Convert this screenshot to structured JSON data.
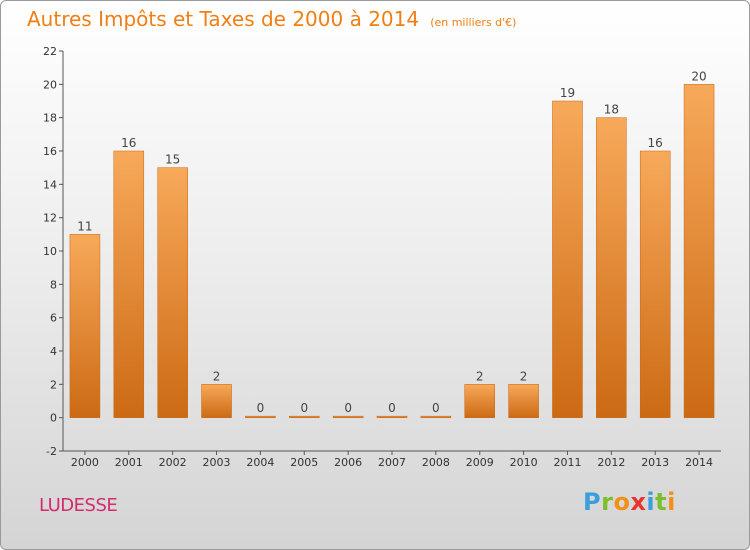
{
  "header": {
    "title": "Autres Impôts et Taxes de 2000 à 2014",
    "unit": "(en milliers d'€)"
  },
  "footer": {
    "commune": "LUDESSE",
    "logo_letters": [
      "P",
      "r",
      "o",
      "x",
      "i",
      "t",
      "i"
    ]
  },
  "colors": {
    "title": "#f07f14",
    "commune": "#d42a6e",
    "bar_light": "#f7a95a",
    "bar_dark": "#cc6a14",
    "axis": "#555555"
  },
  "chart_data": {
    "type": "bar",
    "title": "Autres Impôts et Taxes de 2000 à 2014",
    "subtitle": "(en milliers d'€)",
    "categories": [
      "2000",
      "2001",
      "2002",
      "2003",
      "2004",
      "2005",
      "2006",
      "2007",
      "2008",
      "2009",
      "2010",
      "2011",
      "2012",
      "2013",
      "2014"
    ],
    "values": [
      11,
      16,
      15,
      2,
      0,
      0,
      0,
      0,
      0,
      2,
      2,
      19,
      18,
      16,
      20
    ],
    "data_labels": [
      "11",
      "16",
      "15",
      "2",
      "0",
      "0",
      "0",
      "0",
      "0",
      "2",
      "2",
      "19",
      "18",
      "16",
      "20"
    ],
    "ylim": [
      -2,
      22
    ],
    "yticks": [
      -2,
      0,
      2,
      4,
      6,
      8,
      10,
      12,
      14,
      16,
      18,
      20,
      22
    ],
    "grid": false,
    "legend": "none"
  }
}
